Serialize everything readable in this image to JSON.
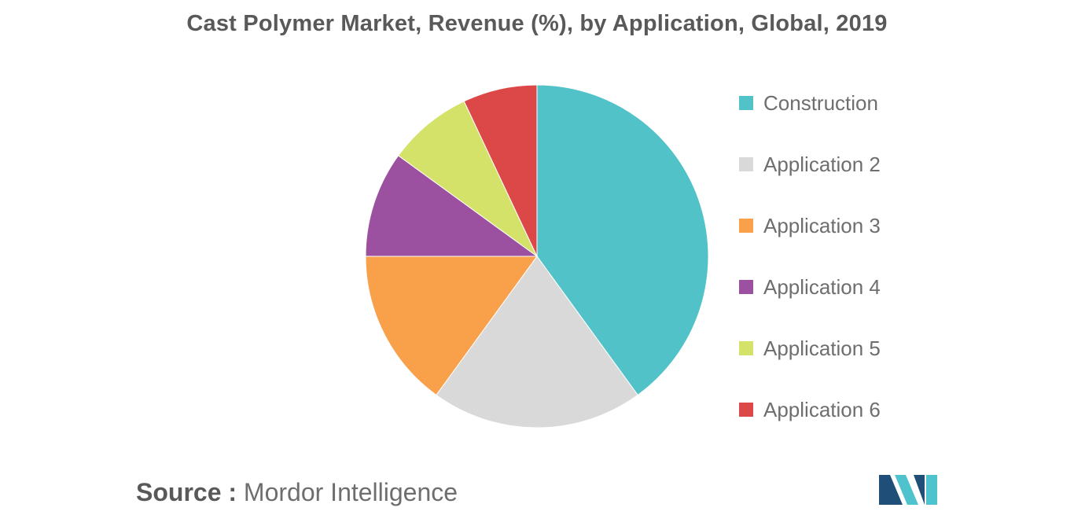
{
  "colors": {
    "title": "#595959",
    "text": "#6e6e6e",
    "logo_dark": "#1f4e79",
    "logo_light": "#4fc3cd"
  },
  "chart_data": {
    "type": "pie",
    "title": "Cast Polymer Market, Revenue (%), by Application, Global, 2019",
    "start_angle_deg": 0,
    "direction": "clockwise",
    "legend_position": "right",
    "slices": [
      {
        "label": "Construction",
        "value": 40,
        "color": "#50c2c8"
      },
      {
        "label": "Application 2",
        "value": 20,
        "color": "#d9d9d9"
      },
      {
        "label": "Application 3",
        "value": 15,
        "color": "#f9a04b"
      },
      {
        "label": "Application 4",
        "value": 10,
        "color": "#9c50a0"
      },
      {
        "label": "Application 5",
        "value": 8,
        "color": "#d4e26a"
      },
      {
        "label": "Application 6",
        "value": 7,
        "color": "#dc4848"
      }
    ]
  },
  "source": {
    "label": "Source :",
    "text": "Mordor Intelligence"
  },
  "logo": {
    "icon": "mordor-intelligence-logo-icon"
  }
}
